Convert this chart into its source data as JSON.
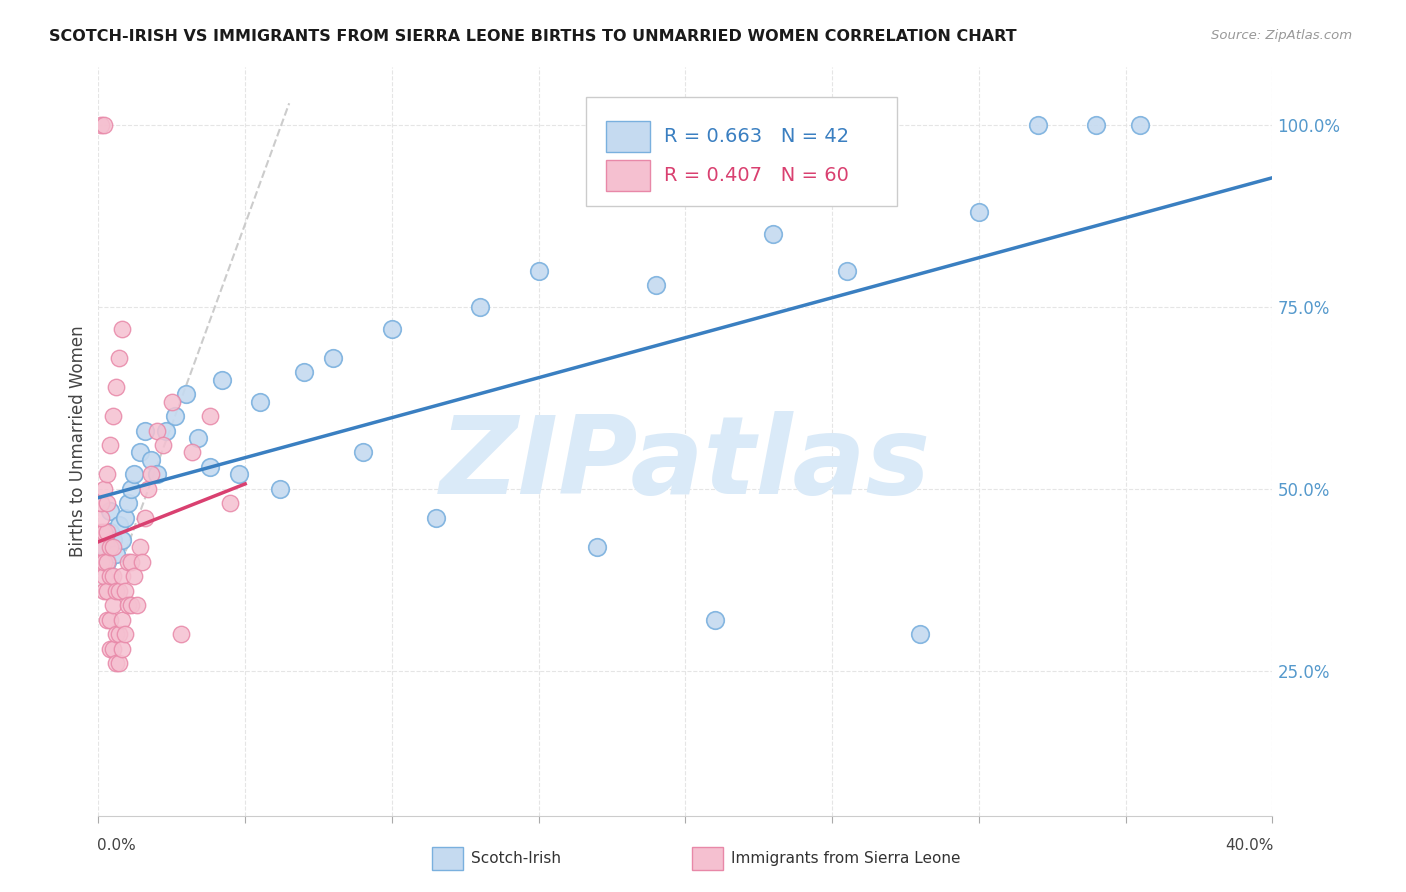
{
  "title": "SCOTCH-IRISH VS IMMIGRANTS FROM SIERRA LEONE BIRTHS TO UNMARRIED WOMEN CORRELATION CHART",
  "source": "Source: ZipAtlas.com",
  "ylabel": "Births to Unmarried Women",
  "xlim": [
    0.0,
    0.4
  ],
  "ylim": [
    0.05,
    1.08
  ],
  "blue_face_color": "#c5daf0",
  "blue_edge_color": "#7ab0de",
  "blue_line_color": "#3a7fc1",
  "pink_face_color": "#f5c0d0",
  "pink_edge_color": "#e888a8",
  "pink_line_color": "#d94070",
  "gray_dash_color": "#cccccc",
  "watermark_color": "#daeaf8",
  "background_color": "#ffffff",
  "grid_color": "#e5e5e5",
  "ytick_color": "#5599cc",
  "title_color": "#1a1a1a",
  "source_color": "#999999",
  "legend_label_blue": "Scotch-Irish",
  "legend_label_pink": "Immigrants from Sierra Leone",
  "scotch_irish_x": [
    0.002,
    0.003,
    0.004,
    0.004,
    0.005,
    0.006,
    0.007,
    0.008,
    0.009,
    0.01,
    0.011,
    0.012,
    0.014,
    0.016,
    0.018,
    0.02,
    0.023,
    0.026,
    0.03,
    0.034,
    0.038,
    0.042,
    0.048,
    0.055,
    0.062,
    0.07,
    0.08,
    0.09,
    0.1,
    0.115,
    0.13,
    0.15,
    0.17,
    0.19,
    0.21,
    0.23,
    0.255,
    0.28,
    0.3,
    0.32,
    0.34,
    0.355
  ],
  "scotch_irish_y": [
    0.42,
    0.4,
    0.44,
    0.47,
    0.43,
    0.41,
    0.45,
    0.43,
    0.46,
    0.48,
    0.5,
    0.52,
    0.55,
    0.58,
    0.54,
    0.52,
    0.58,
    0.6,
    0.63,
    0.57,
    0.53,
    0.65,
    0.52,
    0.62,
    0.5,
    0.66,
    0.68,
    0.55,
    0.72,
    0.46,
    0.75,
    0.8,
    0.42,
    0.78,
    0.32,
    0.85,
    0.8,
    0.3,
    0.88,
    1.0,
    1.0,
    1.0
  ],
  "sierra_leone_x": [
    0.001,
    0.001,
    0.001,
    0.001,
    0.002,
    0.002,
    0.002,
    0.002,
    0.002,
    0.003,
    0.003,
    0.003,
    0.003,
    0.004,
    0.004,
    0.004,
    0.004,
    0.005,
    0.005,
    0.005,
    0.005,
    0.006,
    0.006,
    0.006,
    0.007,
    0.007,
    0.007,
    0.008,
    0.008,
    0.008,
    0.009,
    0.009,
    0.01,
    0.01,
    0.011,
    0.011,
    0.012,
    0.013,
    0.014,
    0.015,
    0.016,
    0.017,
    0.018,
    0.02,
    0.022,
    0.025,
    0.028,
    0.032,
    0.038,
    0.045,
    0.001,
    0.001,
    0.002,
    0.003,
    0.003,
    0.004,
    0.005,
    0.006,
    0.007,
    0.008
  ],
  "sierra_leone_y": [
    0.4,
    0.42,
    0.44,
    1.0,
    0.36,
    0.38,
    0.4,
    0.44,
    1.0,
    0.32,
    0.36,
    0.4,
    0.44,
    0.28,
    0.32,
    0.38,
    0.42,
    0.28,
    0.34,
    0.38,
    0.42,
    0.26,
    0.3,
    0.36,
    0.26,
    0.3,
    0.36,
    0.28,
    0.32,
    0.38,
    0.3,
    0.36,
    0.34,
    0.4,
    0.34,
    0.4,
    0.38,
    0.34,
    0.42,
    0.4,
    0.46,
    0.5,
    0.52,
    0.58,
    0.56,
    0.62,
    0.3,
    0.55,
    0.6,
    0.48,
    0.46,
    0.48,
    0.5,
    0.48,
    0.52,
    0.56,
    0.6,
    0.64,
    0.68,
    0.72
  ]
}
